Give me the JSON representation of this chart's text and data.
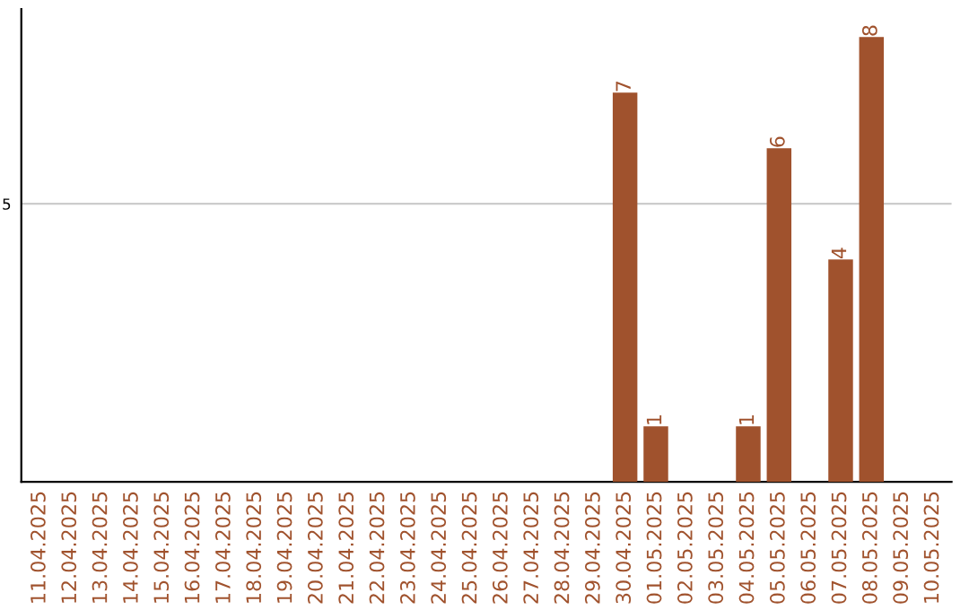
{
  "chart_data": {
    "type": "bar",
    "categories": [
      "11.04.2025",
      "12.04.2025",
      "13.04.2025",
      "14.04.2025",
      "15.04.2025",
      "16.04.2025",
      "17.04.2025",
      "18.04.2025",
      "19.04.2025",
      "20.04.2025",
      "21.04.2025",
      "22.04.2025",
      "23.04.2025",
      "24.04.2025",
      "25.04.2025",
      "26.04.2025",
      "27.04.2025",
      "28.04.2025",
      "29.04.2025",
      "30.04.2025",
      "01.05.2025",
      "02.05.2025",
      "03.05.2025",
      "04.05.2025",
      "05.05.2025",
      "06.05.2025",
      "07.05.2025",
      "08.05.2025",
      "09.05.2025",
      "10.05.2025"
    ],
    "values": [
      null,
      null,
      null,
      null,
      null,
      null,
      null,
      null,
      null,
      null,
      null,
      null,
      null,
      null,
      null,
      null,
      null,
      null,
      null,
      7,
      1,
      null,
      null,
      1,
      6,
      null,
      4,
      8,
      null,
      null
    ],
    "data_labels": true,
    "ylim": [
      0,
      8.5
    ],
    "color": "#a0522d",
    "yticks": [
      5
    ],
    "grid": "y"
  }
}
